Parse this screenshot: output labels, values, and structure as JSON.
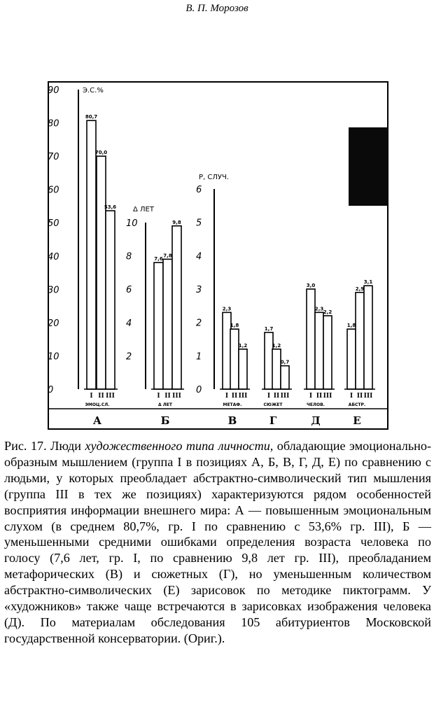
{
  "header": {
    "running_title": "В. П. Морозов"
  },
  "chart_data": {
    "type": "bar",
    "panels": [
      {
        "id": "А",
        "axis_title": "Э.С.%",
        "ylim": [
          0,
          90
        ],
        "yticks": [
          "0",
          "10",
          "20",
          "30",
          "40",
          "50",
          "60",
          "70",
          "80",
          "90"
        ],
        "categories": [
          "I",
          "II",
          "III"
        ],
        "values": [
          80.7,
          70.0,
          53.6
        ],
        "value_labels": [
          "80,7",
          "70,0",
          "53,6"
        ],
        "group_label": "ЭМОЦ.СЛ."
      },
      {
        "id": "Б",
        "axis_title": "Δ ЛЕТ",
        "ylim": [
          0,
          10
        ],
        "yticks": [
          "2",
          "4",
          "6",
          "8",
          "10"
        ],
        "categories": [
          "I",
          "II",
          "III"
        ],
        "values": [
          7.6,
          7.8,
          9.8
        ],
        "value_labels": [
          "7,6",
          "7,8",
          "9,8"
        ],
        "group_label": "Δ ЛЕТ"
      },
      {
        "id": "В",
        "axis_title": "Р, СЛУЧ.",
        "ylim": [
          0,
          6
        ],
        "yticks": [
          "0",
          "1",
          "2",
          "3",
          "4",
          "5",
          "6"
        ],
        "categories": [
          "I",
          "II",
          "III"
        ],
        "values": [
          2.3,
          1.8,
          1.2
        ],
        "value_labels": [
          "2,3",
          "1,8",
          "1,2"
        ],
        "group_label": "МЕТАФ."
      },
      {
        "id": "Г",
        "ylim": [
          0,
          6
        ],
        "categories": [
          "I",
          "II",
          "III"
        ],
        "values": [
          1.7,
          1.2,
          0.7
        ],
        "value_labels": [
          "1,7",
          "1,2",
          "0,7"
        ],
        "group_label": "СЮЖЕТ"
      },
      {
        "id": "Д",
        "ylim": [
          0,
          6
        ],
        "categories": [
          "I",
          "II",
          "III"
        ],
        "values": [
          3.0,
          2.3,
          2.2
        ],
        "value_labels": [
          "3,0",
          "2,3",
          "2,2"
        ],
        "group_label": "ЧЕЛОВ."
      },
      {
        "id": "Е",
        "ylim": [
          0,
          6
        ],
        "categories": [
          "I",
          "II",
          "III"
        ],
        "values": [
          1.8,
          2.9,
          3.1
        ],
        "value_labels": [
          "1,8",
          "2,9",
          "3,1"
        ],
        "group_label": "АБСТР."
      }
    ],
    "grid": false
  },
  "caption": {
    "prefix": "Рис. 17. Люди ",
    "italic": "художественного типа личности,",
    "body": " обладающие эмоционально-образным мышлением (группа I в позициях А, Б, В, Г, Д, Е) по сравнению с людьми, у которых преобладает абстрактно-символический тип мышления (группа III в тех же позициях) характеризуются рядом особенностей восприятия информации внешнего мира: А — повышенным эмоциональным слухом (в среднем 80,7%, гр. I по сравнению с 53,6% гр. III), Б — уменьшенными средними ошибками определения возраста человека по голосу (7,6 лет, гр. I, по сравнению 9,8 лет гр. III), преобладанием метафорических (В) и сюжетных (Г), но уменьшенным количеством абстрактно-символических (Е) зарисовок по методике пиктограмм. У «художников» также чаще встречаются в зарисовках изображения человека (Д). По материалам обследования 105 абитуриентов Московской государственной консерватории. (Ориг.)."
  }
}
